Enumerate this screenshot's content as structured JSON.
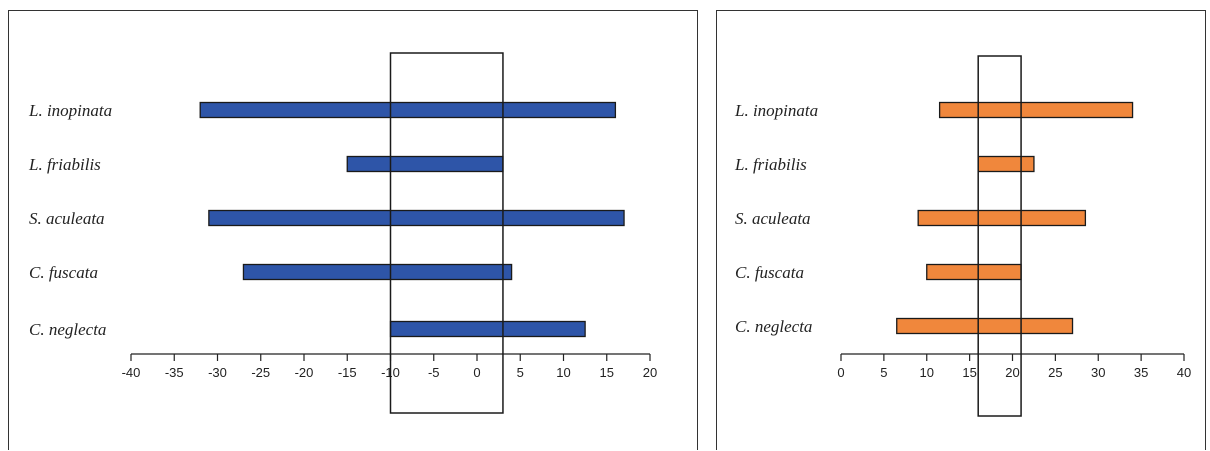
{
  "chart_data": [
    {
      "type": "bar",
      "orientation": "horizontal-range",
      "categories": [
        "L. inopinata",
        "L. friabilis",
        "S. aculeata",
        "C. fuscata",
        "C. neglecta"
      ],
      "ranges": [
        [
          -32,
          16
        ],
        [
          -15,
          3
        ],
        [
          -31,
          17
        ],
        [
          -27,
          4
        ],
        [
          -10,
          12.5
        ]
      ],
      "xlim": [
        -40,
        20
      ],
      "xticks": [
        -40,
        -35,
        -30,
        -25,
        -20,
        -15,
        -10,
        -5,
        0,
        5,
        10,
        15,
        20
      ],
      "highlight_range": [
        -10,
        3
      ],
      "bar_color": "#2E55A8",
      "grid": false
    },
    {
      "type": "bar",
      "orientation": "horizontal-range",
      "categories": [
        "L. inopinata",
        "L. friabilis",
        "S. aculeata",
        "C. fuscata",
        "C. neglecta"
      ],
      "ranges": [
        [
          11.5,
          34
        ],
        [
          16,
          22.5
        ],
        [
          9,
          28.5
        ],
        [
          10,
          21
        ],
        [
          6.5,
          27
        ]
      ],
      "xlim": [
        0,
        40
      ],
      "xticks": [
        0,
        5,
        10,
        15,
        20,
        25,
        30,
        35,
        40
      ],
      "highlight_range": [
        16,
        21
      ],
      "bar_color": "#F0873C",
      "grid": false
    }
  ]
}
